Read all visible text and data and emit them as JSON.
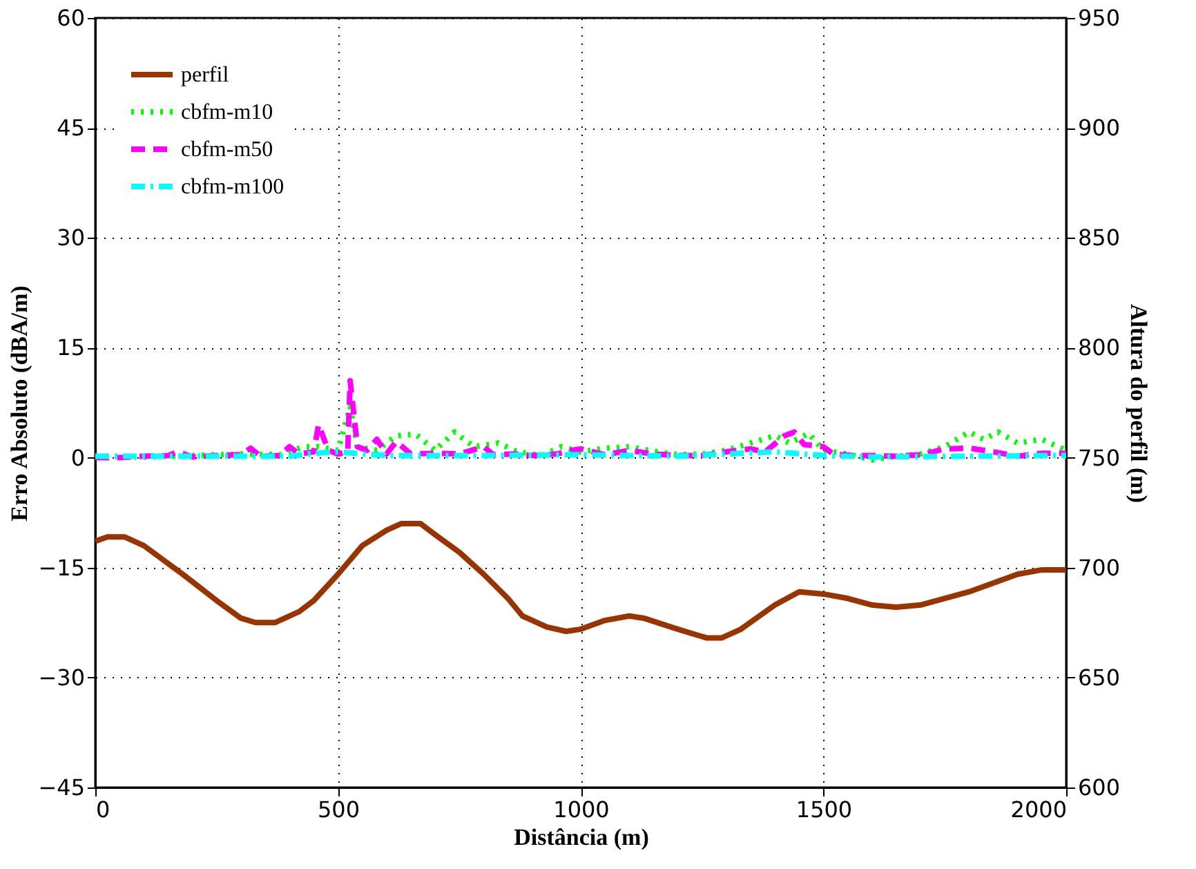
{
  "chart_data": {
    "type": "line",
    "xlabel": "Distância (m)",
    "ylabel": "Erro Absoluto (dBA/m)",
    "y2label": "Altura do perfil (m)",
    "xlim": [
      0,
      2000
    ],
    "xticks": [
      0,
      500,
      1000,
      1500,
      2000
    ],
    "ylim": [
      -45,
      60
    ],
    "yticks": [
      -45,
      -30,
      -15,
      0,
      15,
      30,
      45,
      60
    ],
    "y2lim": [
      600,
      950
    ],
    "y2ticks": [
      600,
      650,
      700,
      750,
      800,
      850,
      900,
      950
    ],
    "grid": true,
    "legend": "top left",
    "marker": "none",
    "series": [
      {
        "name": "perfil",
        "color": "#993300",
        "line_style": "solid",
        "axis": "y2",
        "x": [
          0,
          25,
          60,
          100,
          180,
          250,
          300,
          330,
          370,
          420,
          450,
          500,
          550,
          600,
          630,
          670,
          700,
          750,
          800,
          850,
          880,
          930,
          970,
          1000,
          1050,
          1100,
          1130,
          1200,
          1260,
          1290,
          1330,
          1400,
          1450,
          1500,
          1550,
          1600,
          1650,
          1700,
          1800,
          1900,
          1950,
          2000
        ],
        "values": [
          712,
          714,
          714,
          710,
          697,
          685,
          677,
          675,
          675,
          680,
          685,
          697,
          710,
          717,
          720,
          720,
          715,
          707,
          697,
          686,
          678,
          673,
          671,
          672,
          676,
          678,
          677,
          672,
          668,
          668,
          672,
          683,
          689,
          688,
          686,
          683,
          682,
          683,
          689,
          697,
          699,
          699
        ]
      },
      {
        "name": "cbfm-m10",
        "color": "#00ff00",
        "line_style": "dotted",
        "x": [
          0,
          100,
          200,
          300,
          380,
          430,
          460,
          500,
          525,
          540,
          580,
          620,
          660,
          700,
          740,
          780,
          830,
          870,
          920,
          960,
          1000,
          1050,
          1100,
          1150,
          1200,
          1250,
          1300,
          1350,
          1400,
          1430,
          1470,
          1500,
          1550,
          1600,
          1650,
          1700,
          1750,
          1800,
          1830,
          1860,
          1900,
          1950,
          2000
        ],
        "values": [
          0.2,
          0.1,
          0.3,
          0.5,
          0.4,
          1.5,
          1.5,
          1.0,
          7,
          1.5,
          1.0,
          3.0,
          3.2,
          1.0,
          3.5,
          1.5,
          2.0,
          0.8,
          0.3,
          1.5,
          0.8,
          1.3,
          1.5,
          0.9,
          0.4,
          0.5,
          1.0,
          2.0,
          3.0,
          2.0,
          3.3,
          1.0,
          0.5,
          -0.3,
          0.2,
          0.5,
          1.5,
          3.5,
          2.5,
          3.5,
          2.0,
          2.5,
          1.0
        ]
      },
      {
        "name": "cbfm-m50",
        "color": "#ff00ff",
        "line_style": "dashed",
        "x": [
          0,
          50,
          100,
          150,
          170,
          200,
          250,
          300,
          320,
          340,
          380,
          400,
          420,
          450,
          460,
          480,
          500,
          520,
          525,
          540,
          560,
          580,
          600,
          620,
          650,
          700,
          750,
          800,
          820,
          870,
          900,
          950,
          980,
          1000,
          1050,
          1100,
          1150,
          1200,
          1250,
          1300,
          1350,
          1380,
          1420,
          1440,
          1460,
          1500,
          1520,
          1560,
          1600,
          1650,
          1700,
          1750,
          1800,
          1850,
          1900,
          1950,
          2000
        ],
        "values": [
          0,
          0,
          0.2,
          0.3,
          0.8,
          0.1,
          0.3,
          0.4,
          1.3,
          0.2,
          0.3,
          1.5,
          0.5,
          0.8,
          4.5,
          1.0,
          0.5,
          0.8,
          10.5,
          1.5,
          1.0,
          2.5,
          0.5,
          2.2,
          0.5,
          0.6,
          0.5,
          1.5,
          0.4,
          0.5,
          0.3,
          0.5,
          1.0,
          1.2,
          0.4,
          1.0,
          0.5,
          0.3,
          0.3,
          0.8,
          1.2,
          0.8,
          3.0,
          3.5,
          1.8,
          1.5,
          0.5,
          0.3,
          0.3,
          0.2,
          0.4,
          1.2,
          1.3,
          0.8,
          0.2,
          0.6,
          0.6
        ]
      },
      {
        "name": "cbfm-m100",
        "color": "#00ffff",
        "line_style": "dashdot",
        "x": [
          0,
          200,
          400,
          450,
          500,
          550,
          600,
          800,
          1000,
          1200,
          1400,
          1500,
          1600,
          1800,
          2000
        ],
        "values": [
          0.2,
          0.2,
          0.2,
          0.6,
          0.8,
          0.5,
          0.3,
          0.3,
          0.4,
          0.2,
          0.8,
          0.3,
          0.1,
          0.2,
          0.3
        ]
      }
    ]
  }
}
